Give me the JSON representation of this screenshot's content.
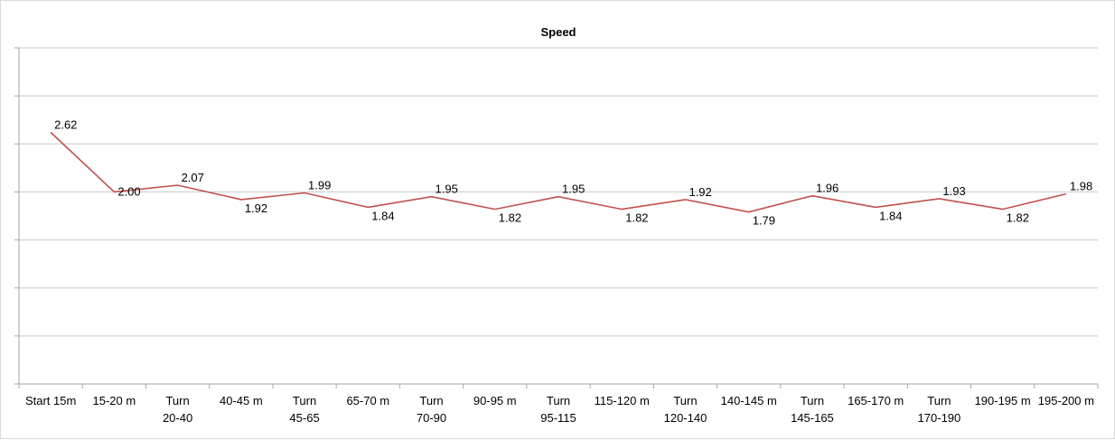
{
  "chart_data": {
    "type": "line",
    "title": "Speed",
    "xlabel": "",
    "ylabel": "",
    "categories": [
      "Start 15m",
      "15-20 m",
      "Turn 20-40",
      "40-45 m",
      "Turn 45-65",
      "65-70 m",
      "Turn 70-90",
      "90-95 m",
      "Turn 95-115",
      "115-120 m",
      "Turn 120-140",
      "140-145 m",
      "Turn 145-165",
      "165-170 m",
      "Turn 170-190",
      "190-195 m",
      "195-200 m"
    ],
    "series": [
      {
        "values": [
          2.62,
          2.0,
          2.07,
          1.92,
          1.99,
          1.84,
          1.95,
          1.82,
          1.95,
          1.82,
          1.92,
          1.79,
          1.96,
          1.84,
          1.93,
          1.82,
          1.98
        ],
        "data_labels": [
          "2.62",
          "2.00",
          "2.07",
          "1.92",
          "1.99",
          "1.84",
          "1.95",
          "1.82",
          "1.95",
          "1.82",
          "1.92",
          "1.79",
          "1.96",
          "1.84",
          "1.93",
          "1.82",
          "1.98"
        ],
        "color": "#c0504d"
      }
    ],
    "ylim": [
      0,
      3.5
    ],
    "y_axis_labels_visible": false,
    "grid": true,
    "legend": "none"
  }
}
